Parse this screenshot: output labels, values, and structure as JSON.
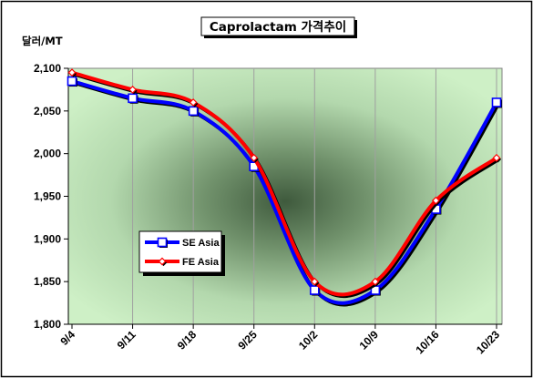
{
  "chart_data": {
    "type": "line",
    "title": "Caprolactam 가격추이",
    "ylabel": "달러/MT",
    "xlabel": "",
    "categories": [
      "9/4",
      "9/11",
      "9/18",
      "9/25",
      "10/2",
      "10/9",
      "10/16",
      "10/23"
    ],
    "ylim": [
      1800,
      2100
    ],
    "yticks": [
      1800,
      1850,
      1900,
      1950,
      2000,
      2050,
      2100
    ],
    "ytick_labels": [
      "1,800",
      "1,850",
      "1,900",
      "1,950",
      "2,000",
      "2,050",
      "2,100"
    ],
    "series": [
      {
        "name": "SE Asia",
        "values": [
          2085,
          2065,
          2050,
          1985,
          1840,
          1840,
          1935,
          2060
        ],
        "color": "#0000ff",
        "marker": "square"
      },
      {
        "name": "FE Asia",
        "values": [
          2095,
          2075,
          2060,
          1995,
          1850,
          1850,
          1945,
          1995
        ],
        "color": "#ff0000",
        "marker": "diamond"
      }
    ],
    "legend_position": "left-center",
    "grid": "vertical",
    "smooth": true
  }
}
